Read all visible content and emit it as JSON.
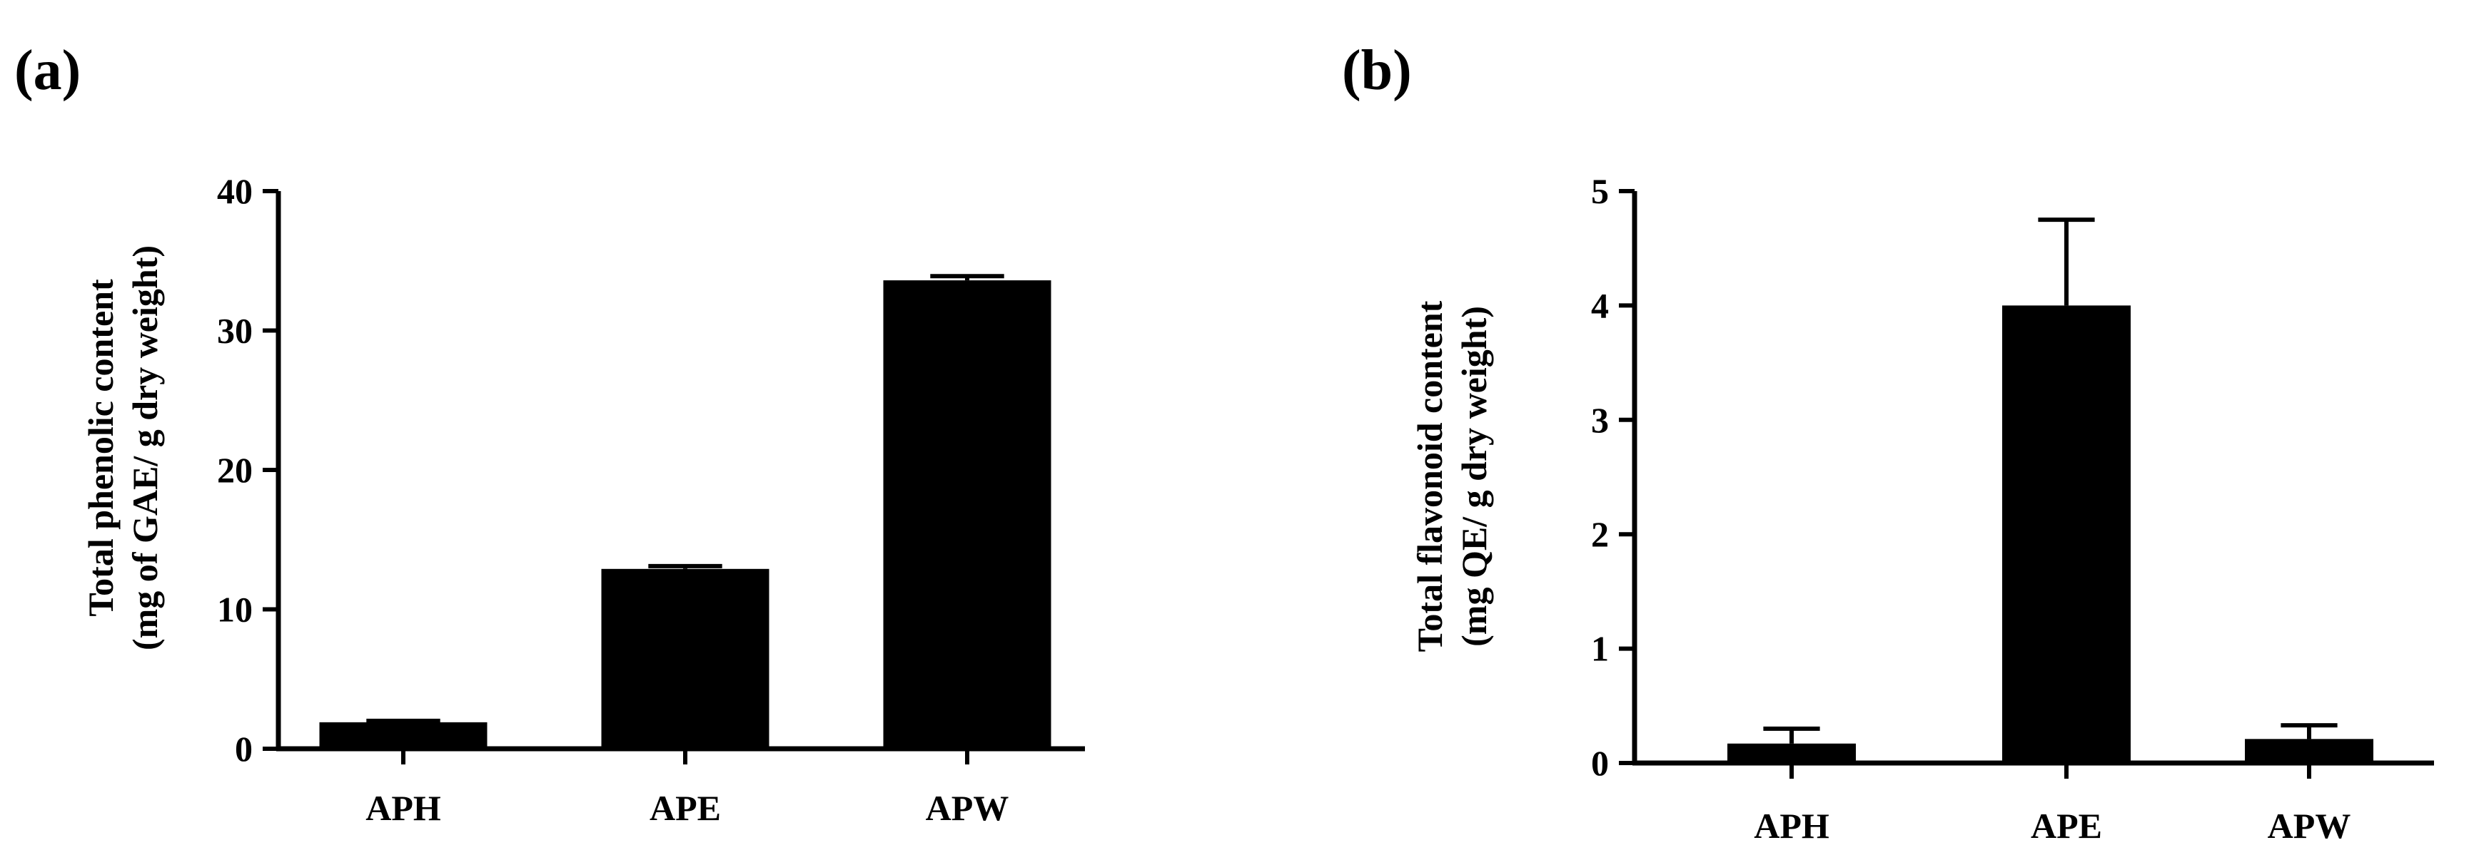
{
  "colors": {
    "bar": "#000000",
    "axis": "#000000",
    "background": "#ffffff"
  },
  "chart_data": [
    {
      "type": "bar",
      "panel_label": "(a)",
      "categories": [
        "APH",
        "APE",
        "APW"
      ],
      "values": [
        1.9,
        12.9,
        33.6
      ],
      "errors": [
        0.1,
        0.2,
        0.3
      ],
      "ylabel_line1": "Total phenolic content",
      "ylabel_line2": "(mg of GAE/ g dry weight)",
      "xlabel": "",
      "ylim": [
        0,
        40
      ],
      "yticks": [
        0,
        10,
        20,
        30,
        40
      ],
      "grid": false,
      "legend": "none"
    },
    {
      "type": "bar",
      "panel_label": "(b)",
      "categories": [
        "APH",
        "APE",
        "APW"
      ],
      "values": [
        0.17,
        4.0,
        0.21
      ],
      "errors": [
        0.13,
        0.75,
        0.12
      ],
      "ylabel_line1": "Total flavonoid content",
      "ylabel_line2": "(mg QE/ g dry weight)",
      "xlabel": "",
      "ylim": [
        0,
        5
      ],
      "yticks": [
        0,
        1,
        2,
        3,
        4,
        5
      ],
      "grid": false,
      "legend": "none"
    }
  ]
}
